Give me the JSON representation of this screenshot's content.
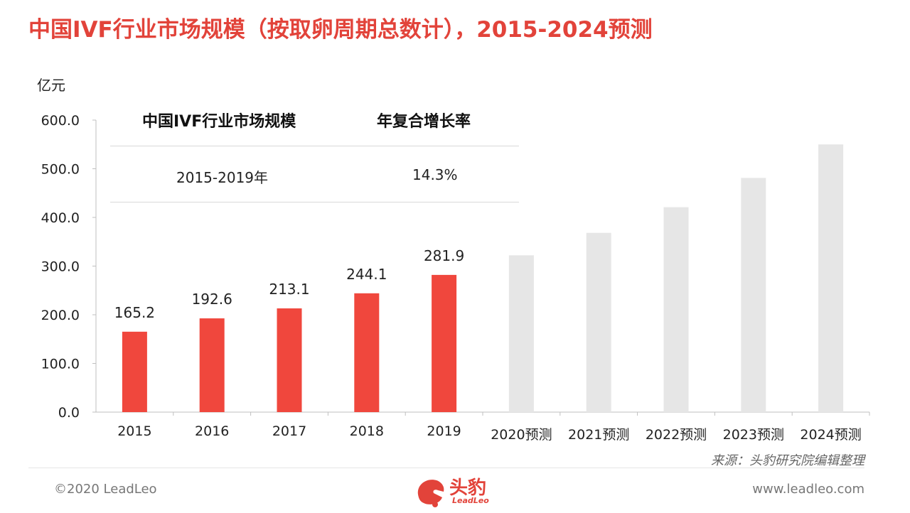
{
  "header": {
    "title": "中国IVF行业市场规模（按取卵周期总数计），2015-2024预测"
  },
  "chart_data": {
    "type": "bar",
    "ylabel": "亿元",
    "ylim": [
      0,
      600
    ],
    "yticks": [
      "0.0",
      "100.0",
      "200.0",
      "300.0",
      "400.0",
      "500.0",
      "600.0"
    ],
    "categories": [
      "2015",
      "2016",
      "2017",
      "2018",
      "2019",
      "2020预测",
      "2021预测",
      "2022预测",
      "2023预测",
      "2024预测"
    ],
    "series": [
      {
        "name": "",
        "values": [
          165.2,
          192.6,
          213.1,
          244.1,
          281.9,
          322.2,
          368.3,
          421.0,
          481.2,
          550.0
        ]
      }
    ],
    "data_labels": [
      "165.2",
      "192.6",
      "213.1",
      "244.1",
      "281.9",
      "",
      "",
      "",
      "",
      ""
    ],
    "bar_colors": [
      "#f0473d",
      "#f0473d",
      "#f0473d",
      "#f0473d",
      "#f0473d",
      "#e6e6e6",
      "#e6e6e6",
      "#e6e6e6",
      "#e6e6e6",
      "#e6e6e6"
    ],
    "grid": false
  },
  "cagr_table": {
    "headers": [
      "中国IVF行业市场规模",
      "年复合增长率"
    ],
    "row": {
      "period": "2015-2019年",
      "rate": "14.3%"
    }
  },
  "footer": {
    "source": "来源：头豹研究院编辑整理",
    "copyright": "©2020 LeadLeo",
    "website": "www.leadleo.com",
    "logo_text": "头豹",
    "logo_subtext": "LeadLeo"
  },
  "colors": {
    "accent": "#e2433a",
    "bar_actual": "#f0473d",
    "bar_forecast": "#e6e6e6"
  }
}
